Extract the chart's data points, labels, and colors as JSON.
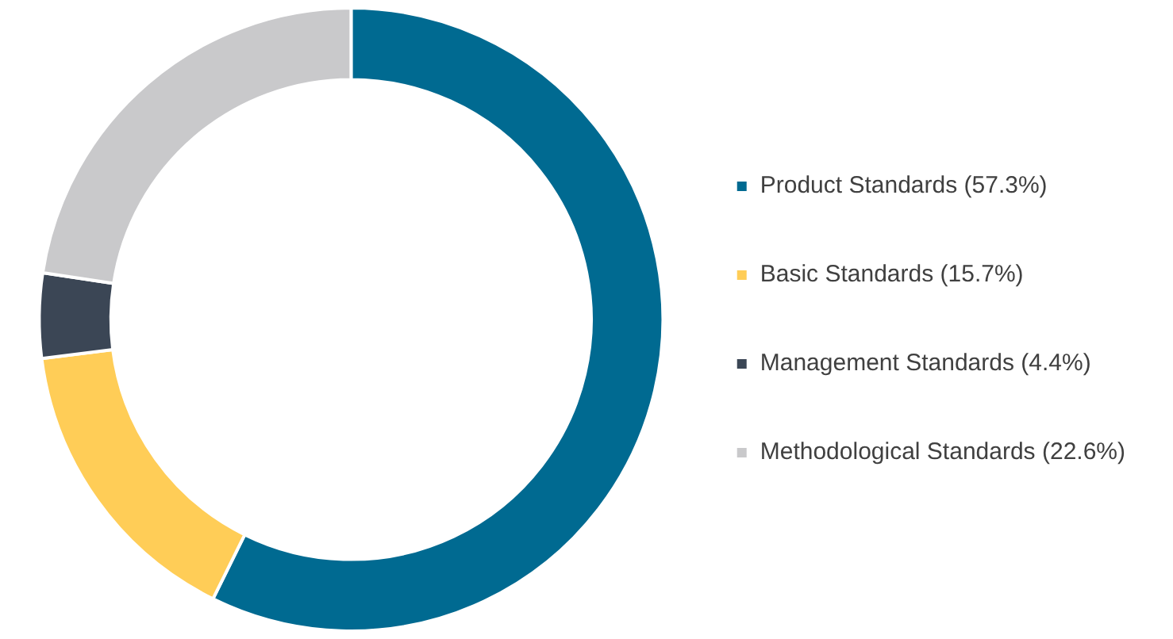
{
  "chart_data": {
    "type": "donut",
    "categories": [
      "Product Standards (57.3%)",
      "Basic Standards (15.7%)",
      "Management Standards (4.4%)",
      "Methodological Standards (22.6%)"
    ],
    "values": [
      57.3,
      15.7,
      4.4,
      22.6
    ],
    "colors": [
      "#006a91",
      "#ffcd57",
      "#3b4655",
      "#c9c9cb"
    ],
    "legend": "right"
  }
}
